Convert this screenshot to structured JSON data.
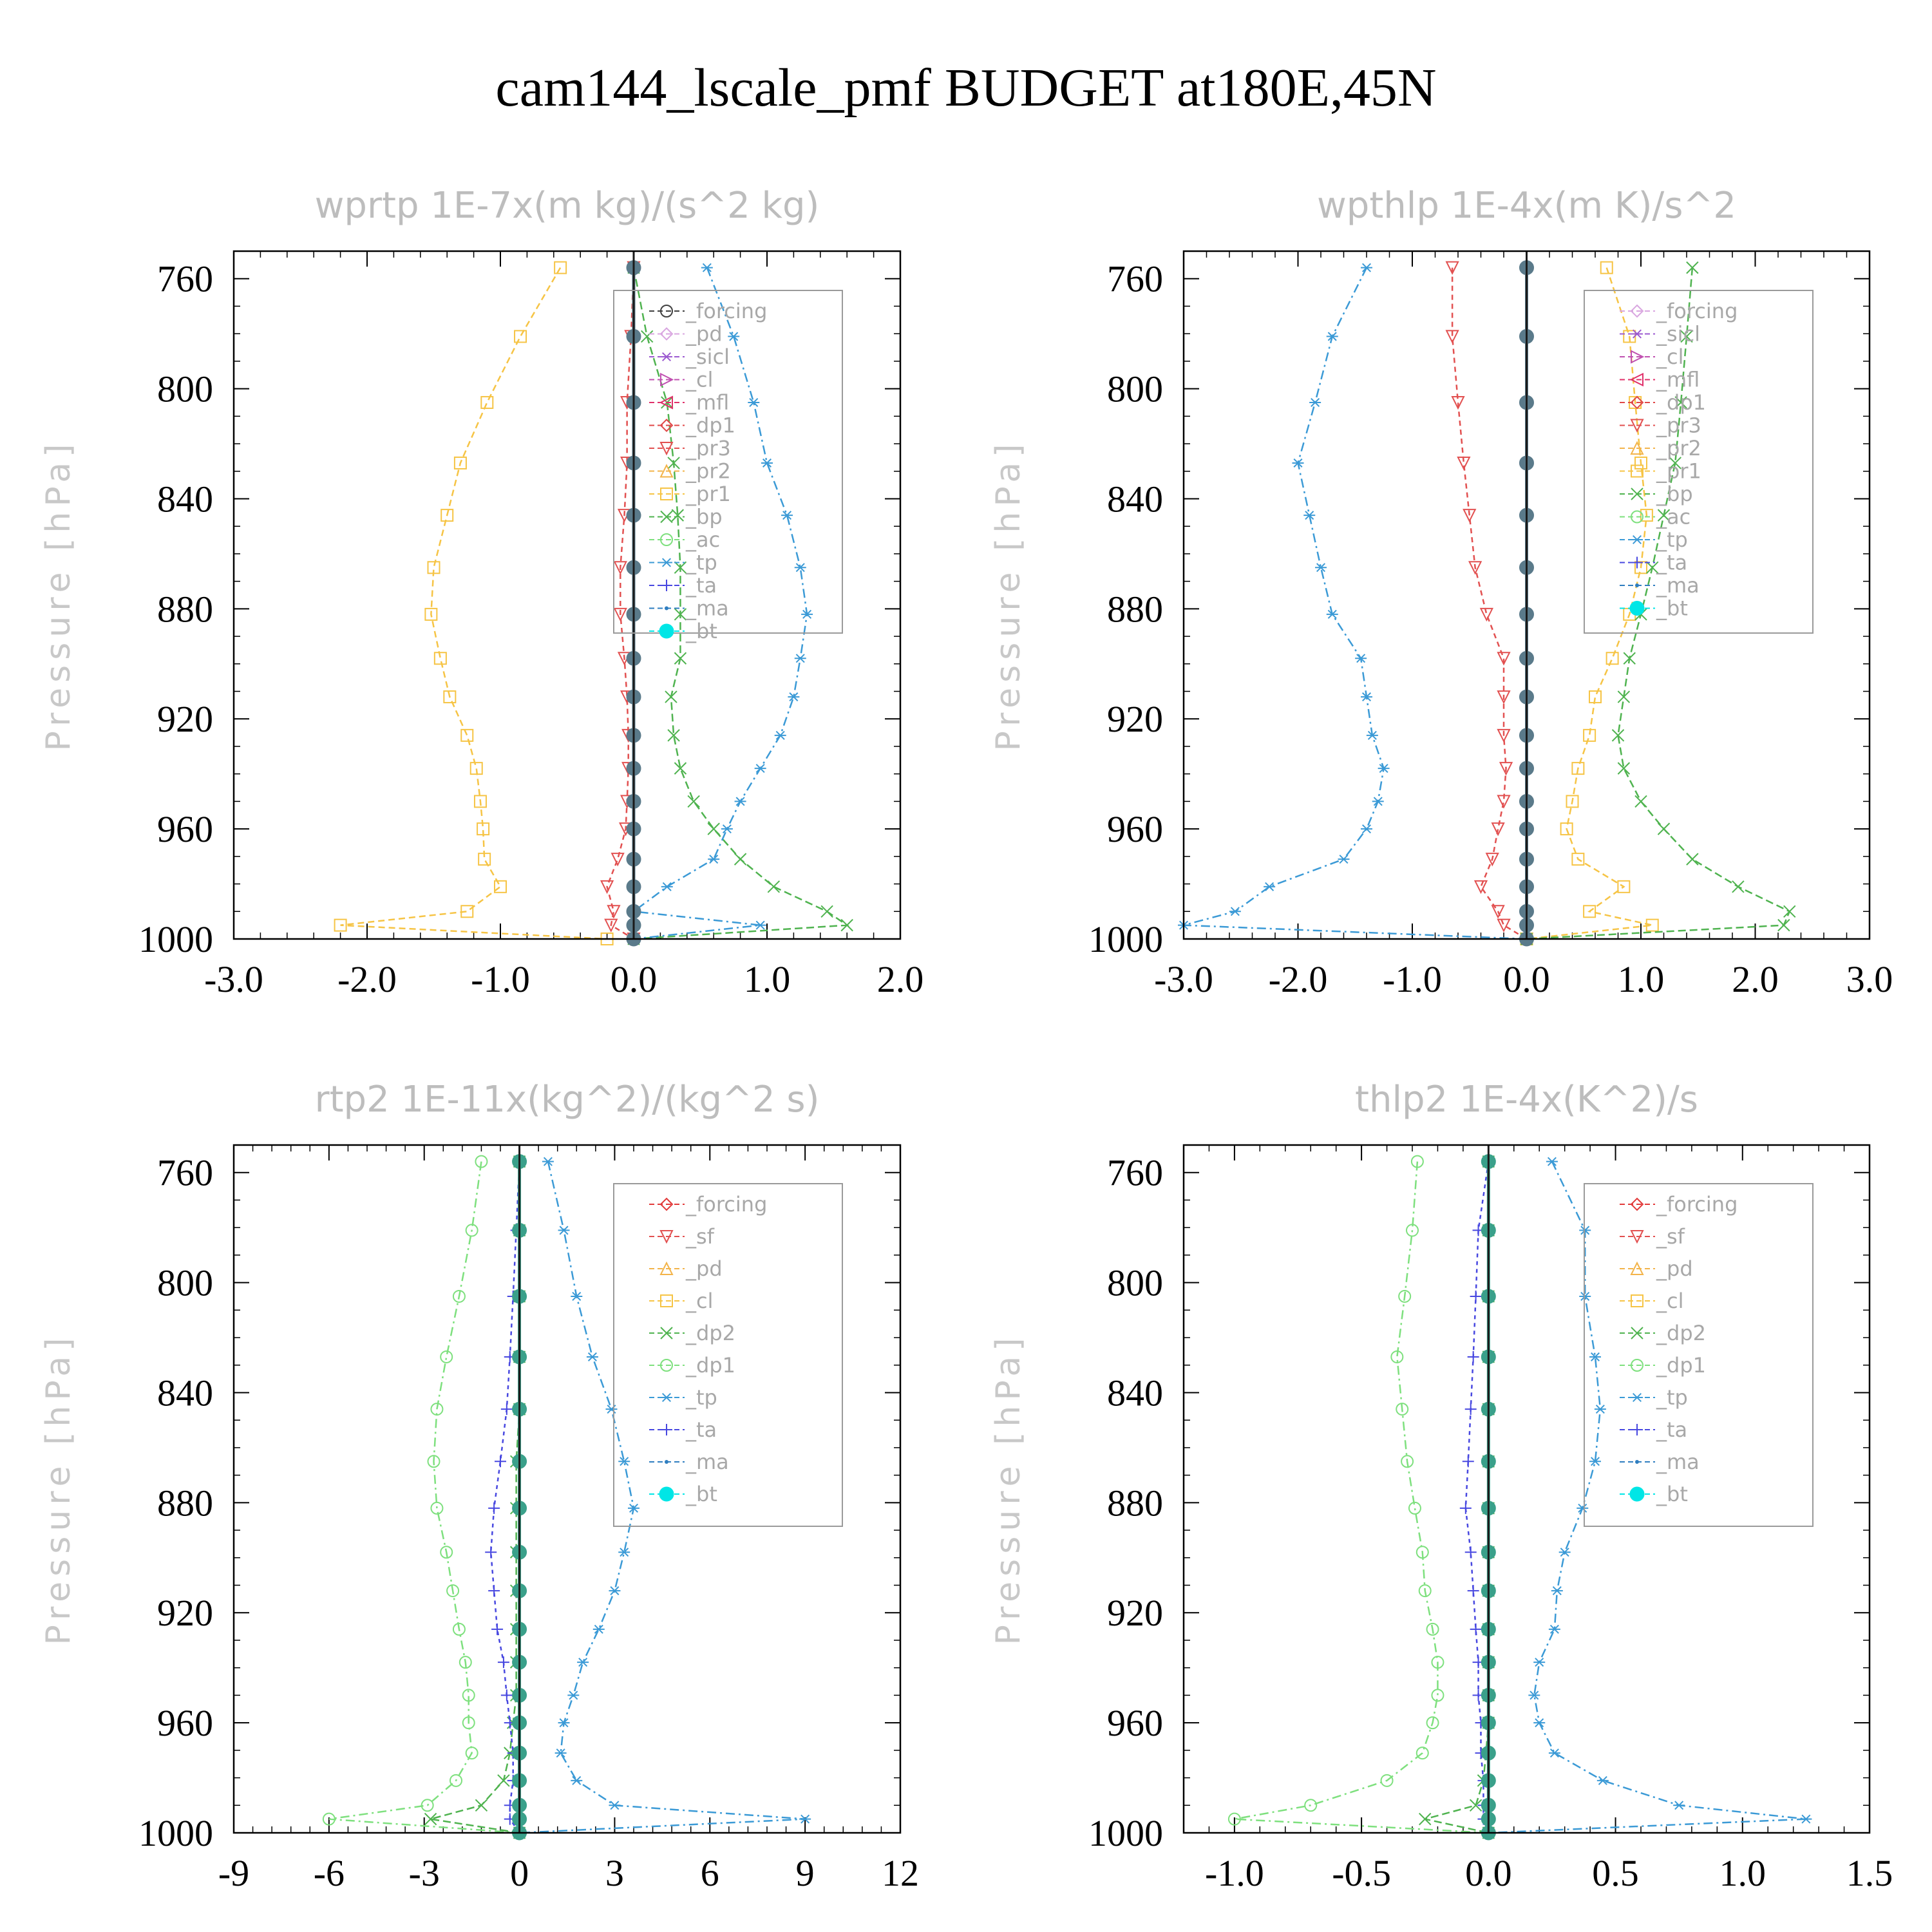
{
  "figure": {
    "title": "cam144_lscale_pmf  BUDGET at180E,45N"
  },
  "colors": {
    "forcing_black": "#404040",
    "forcing_red": "#e23a3a",
    "sf": "#e23a3a",
    "pd": "#d9a6e0",
    "sicl": "#9b59d0",
    "cl": "#c050b0",
    "mfl": "#e0306a",
    "dp1": "#e04848",
    "pr3": "#e25050",
    "pr2": "#f3b44a",
    "pr1": "#f6c445",
    "bp": "#4fb34f",
    "ac": "#7ee07e",
    "tp": "#3b9ad6",
    "ta": "#4848e0",
    "ma": "#2f7ec0",
    "bt": "#00e6e6",
    "axis": "#000000",
    "title": "#bdbdbd"
  },
  "chart_data": [
    {
      "type": "line",
      "title": "wprtp  1E-7x(m kg)/(s^2 kg)",
      "ylabel": "Pressure [hPa]",
      "xlim": [
        -3.0,
        2.0
      ],
      "xticks": [
        "-3.0",
        "-2.0",
        "-1.0",
        "0.0",
        "1.0",
        "2.0"
      ],
      "xtick_values": [
        -3,
        -2,
        -1,
        0,
        1,
        2
      ],
      "ylim": [
        750,
        1000
      ],
      "yticks": [
        "760",
        "800",
        "840",
        "880",
        "920",
        "960",
        "1000"
      ],
      "ytick_values": [
        760,
        800,
        840,
        880,
        920,
        960,
        1000
      ],
      "levels": [
        756,
        781,
        805,
        827,
        846,
        865,
        882,
        898,
        912,
        926,
        938,
        950,
        960,
        971,
        981,
        990,
        995,
        1000
      ],
      "legend": [
        {
          "name": "_forcing",
          "color": "#404040",
          "marker": "circle"
        },
        {
          "name": "_pd",
          "color": "#d9a6e0",
          "marker": "diamond"
        },
        {
          "name": "_sicl",
          "color": "#9b59d0",
          "marker": "star"
        },
        {
          "name": "_cl",
          "color": "#c050b0",
          "marker": "tri-right"
        },
        {
          "name": "_mfl",
          "color": "#e0306a",
          "marker": "tri-left"
        },
        {
          "name": "_dp1",
          "color": "#e04848",
          "marker": "diamond"
        },
        {
          "name": "_pr3",
          "color": "#e25050",
          "marker": "tri-down"
        },
        {
          "name": "_pr2",
          "color": "#f3b44a",
          "marker": "tri-up"
        },
        {
          "name": "_pr1",
          "color": "#f6c445",
          "marker": "square"
        },
        {
          "name": "_bp",
          "color": "#4fb34f",
          "marker": "x"
        },
        {
          "name": "_ac",
          "color": "#7ee07e",
          "marker": "circle"
        },
        {
          "name": "_tp",
          "color": "#3b9ad6",
          "marker": "asterisk"
        },
        {
          "name": "_ta",
          "color": "#4848e0",
          "marker": "plus"
        },
        {
          "name": "_ma",
          "color": "#2f7ec0",
          "marker": "dot"
        },
        {
          "name": "_bt",
          "color": "#00e6e6",
          "marker": "filled-circle"
        }
      ],
      "series": [
        {
          "name": "_pr1",
          "color": "#f6c445",
          "marker": "square",
          "dash": "10,6",
          "values": [
            -0.55,
            -0.85,
            -1.1,
            -1.3,
            -1.4,
            -1.5,
            -1.52,
            -1.45,
            -1.38,
            -1.25,
            -1.18,
            -1.15,
            -1.13,
            -1.12,
            -1.0,
            -1.25,
            -2.2,
            -0.2
          ]
        },
        {
          "name": "_bp",
          "color": "#4fb34f",
          "marker": "x",
          "dash": "12,6",
          "values": [
            0.0,
            0.1,
            0.25,
            0.3,
            0.33,
            0.35,
            0.35,
            0.35,
            0.28,
            0.3,
            0.35,
            0.45,
            0.6,
            0.8,
            1.05,
            1.45,
            1.6,
            0.0
          ]
        },
        {
          "name": "_tp",
          "color": "#3b9ad6",
          "marker": "asterisk",
          "dash": "14,6,3,6",
          "values": [
            0.55,
            0.75,
            0.9,
            1.0,
            1.15,
            1.25,
            1.3,
            1.25,
            1.2,
            1.1,
            0.95,
            0.8,
            0.7,
            0.6,
            0.25,
            0.0,
            0.95,
            0.0
          ]
        },
        {
          "name": "_pr3",
          "color": "#e25050",
          "marker": "tri-down",
          "dash": "8,6",
          "values": [
            0.0,
            -0.02,
            -0.05,
            -0.05,
            -0.07,
            -0.1,
            -0.1,
            -0.07,
            -0.05,
            -0.04,
            -0.04,
            -0.05,
            -0.06,
            -0.12,
            -0.2,
            -0.15,
            -0.17,
            0.0
          ]
        },
        {
          "name": "_bt",
          "color": "#5a7a8a",
          "marker": "filled-circle",
          "dash": "",
          "values": [
            0,
            0,
            0,
            0,
            0,
            0,
            0,
            0,
            0,
            0,
            0,
            0,
            0,
            0,
            0,
            0,
            0,
            0
          ]
        }
      ]
    },
    {
      "type": "line",
      "title": "wpthlp  1E-4x(m K)/s^2",
      "ylabel": "Pressure [hPa]",
      "xlim": [
        -3.0,
        3.0
      ],
      "xticks": [
        "-3.0",
        "-2.0",
        "-1.0",
        "0.0",
        "1.0",
        "2.0",
        "3.0"
      ],
      "xtick_values": [
        -3,
        -2,
        -1,
        0,
        1,
        2,
        3
      ],
      "ylim": [
        750,
        1000
      ],
      "yticks": [
        "760",
        "800",
        "840",
        "880",
        "920",
        "960",
        "1000"
      ],
      "ytick_values": [
        760,
        800,
        840,
        880,
        920,
        960,
        1000
      ],
      "levels": [
        756,
        781,
        805,
        827,
        846,
        865,
        882,
        898,
        912,
        926,
        938,
        950,
        960,
        971,
        981,
        990,
        995,
        1000
      ],
      "legend": [
        {
          "name": "_forcing",
          "color": "#d9a6e0",
          "marker": "diamond"
        },
        {
          "name": "_sicl",
          "color": "#9b59d0",
          "marker": "star"
        },
        {
          "name": "_cl",
          "color": "#c050b0",
          "marker": "tri-right"
        },
        {
          "name": "_mfl",
          "color": "#e0306a",
          "marker": "tri-left"
        },
        {
          "name": "_dp1",
          "color": "#e04848",
          "marker": "diamond"
        },
        {
          "name": "_pr3",
          "color": "#e25050",
          "marker": "tri-down"
        },
        {
          "name": "_pr2",
          "color": "#f3b44a",
          "marker": "tri-up"
        },
        {
          "name": "_pr1",
          "color": "#f6c445",
          "marker": "square"
        },
        {
          "name": "_bp",
          "color": "#4fb34f",
          "marker": "x"
        },
        {
          "name": "_ac",
          "color": "#7ee07e",
          "marker": "circle"
        },
        {
          "name": "_tp",
          "color": "#3b9ad6",
          "marker": "asterisk"
        },
        {
          "name": "_ta",
          "color": "#4848e0",
          "marker": "plus"
        },
        {
          "name": "_ma",
          "color": "#2f7ec0",
          "marker": "dot"
        },
        {
          "name": "_bt",
          "color": "#00e6e6",
          "marker": "filled-circle"
        }
      ],
      "series": [
        {
          "name": "_tp",
          "color": "#3b9ad6",
          "marker": "asterisk",
          "dash": "14,6,3,6",
          "values": [
            -1.4,
            -1.7,
            -1.85,
            -2.0,
            -1.9,
            -1.8,
            -1.7,
            -1.45,
            -1.4,
            -1.35,
            -1.25,
            -1.3,
            -1.4,
            -1.6,
            -2.25,
            -2.55,
            -3.0,
            0.0
          ]
        },
        {
          "name": "_pr3",
          "color": "#e25050",
          "marker": "tri-down",
          "dash": "8,6",
          "values": [
            -0.65,
            -0.65,
            -0.6,
            -0.55,
            -0.5,
            -0.45,
            -0.35,
            -0.2,
            -0.2,
            -0.2,
            -0.18,
            -0.2,
            -0.25,
            -0.3,
            -0.4,
            -0.25,
            -0.2,
            0.0
          ]
        },
        {
          "name": "_pr1",
          "color": "#f6c445",
          "marker": "square",
          "dash": "10,6",
          "values": [
            0.7,
            0.9,
            0.95,
            1.0,
            1.05,
            1.0,
            0.9,
            0.75,
            0.6,
            0.55,
            0.45,
            0.4,
            0.35,
            0.45,
            0.85,
            0.55,
            1.1,
            0.0
          ]
        },
        {
          "name": "_bp",
          "color": "#4fb34f",
          "marker": "x",
          "dash": "12,6",
          "values": [
            1.45,
            1.4,
            1.35,
            1.3,
            1.2,
            1.1,
            1.0,
            0.9,
            0.85,
            0.8,
            0.85,
            1.0,
            1.2,
            1.45,
            1.85,
            2.3,
            2.25,
            0.0
          ]
        },
        {
          "name": "_bt",
          "color": "#5a7a8a",
          "marker": "filled-circle",
          "dash": "",
          "values": [
            0,
            0,
            0,
            0,
            0,
            0,
            0,
            0,
            0,
            0,
            0,
            0,
            0,
            0,
            0,
            0,
            0,
            0
          ]
        }
      ]
    },
    {
      "type": "line",
      "title": "rtp2  1E-11x(kg^2)/(kg^2 s)",
      "ylabel": "Pressure [hPa]",
      "xlim": [
        -9,
        12
      ],
      "xticks": [
        "-9",
        "-6",
        "-3",
        "0",
        "3",
        "6",
        "9",
        "12"
      ],
      "xtick_values": [
        -9,
        -6,
        -3,
        0,
        3,
        6,
        9,
        12
      ],
      "ylim": [
        750,
        1000
      ],
      "yticks": [
        "760",
        "800",
        "840",
        "880",
        "920",
        "960",
        "1000"
      ],
      "ytick_values": [
        760,
        800,
        840,
        880,
        920,
        960,
        1000
      ],
      "levels": [
        756,
        781,
        805,
        827,
        846,
        865,
        882,
        898,
        912,
        926,
        938,
        950,
        960,
        971,
        981,
        990,
        995,
        1000
      ],
      "legend": [
        {
          "name": "_forcing",
          "color": "#e23a3a",
          "marker": "diamond"
        },
        {
          "name": "_sf",
          "color": "#e25050",
          "marker": "tri-down"
        },
        {
          "name": "_pd",
          "color": "#f3b44a",
          "marker": "tri-up"
        },
        {
          "name": "_cl",
          "color": "#f6c445",
          "marker": "square"
        },
        {
          "name": "_dp2",
          "color": "#4fb34f",
          "marker": "x"
        },
        {
          "name": "_dp1",
          "color": "#7ee07e",
          "marker": "circle"
        },
        {
          "name": "_tp",
          "color": "#3b9ad6",
          "marker": "asterisk"
        },
        {
          "name": "_ta",
          "color": "#4848e0",
          "marker": "plus"
        },
        {
          "name": "_ma",
          "color": "#2f7ec0",
          "marker": "dot"
        },
        {
          "name": "_bt",
          "color": "#00e6e6",
          "marker": "filled-circle"
        }
      ],
      "series": [
        {
          "name": "_dp1",
          "color": "#7ee07e",
          "marker": "circle",
          "dash": "14,6,3,6",
          "values": [
            -1.2,
            -1.5,
            -1.9,
            -2.3,
            -2.6,
            -2.7,
            -2.6,
            -2.3,
            -2.1,
            -1.9,
            -1.7,
            -1.6,
            -1.6,
            -1.5,
            -2.0,
            -2.9,
            -6.0,
            0.0
          ]
        },
        {
          "name": "_dp2",
          "color": "#4fb34f",
          "marker": "x",
          "dash": "12,6",
          "values": [
            0.0,
            0.0,
            0.0,
            0.0,
            0.0,
            -0.1,
            -0.1,
            -0.1,
            -0.1,
            -0.1,
            -0.1,
            -0.1,
            -0.2,
            -0.3,
            -0.5,
            -1.2,
            -2.8,
            0.0
          ]
        },
        {
          "name": "_ta",
          "color": "#4848e0",
          "marker": "plus",
          "dash": "6,6",
          "values": [
            0.0,
            -0.1,
            -0.2,
            -0.3,
            -0.4,
            -0.6,
            -0.8,
            -0.9,
            -0.8,
            -0.7,
            -0.5,
            -0.4,
            -0.3,
            -0.2,
            -0.2,
            -0.3,
            -0.3,
            0.0
          ]
        },
        {
          "name": "_tp",
          "color": "#3b9ad6",
          "marker": "asterisk",
          "dash": "14,6,3,6",
          "values": [
            0.9,
            1.4,
            1.8,
            2.3,
            2.9,
            3.3,
            3.6,
            3.3,
            3.0,
            2.5,
            2.0,
            1.7,
            1.4,
            1.3,
            1.8,
            3.0,
            9.0,
            0.0
          ]
        },
        {
          "name": "_bt",
          "color": "#3aa08a",
          "marker": "filled-circle",
          "dash": "",
          "values": [
            0,
            0,
            0,
            0,
            0,
            0,
            0,
            0,
            0,
            0,
            0,
            0,
            0,
            0,
            0,
            0,
            0,
            0
          ]
        }
      ]
    },
    {
      "type": "line",
      "title": "thlp2  1E-4x(K^2)/s",
      "ylabel": "Pressure [hPa]",
      "xlim": [
        -1.2,
        1.5
      ],
      "xticks": [
        "-1.0",
        "-0.5",
        "0.0",
        "0.5",
        "1.0",
        "1.5"
      ],
      "xtick_values": [
        -1.0,
        -0.5,
        0.0,
        0.5,
        1.0,
        1.5
      ],
      "ylim": [
        750,
        1000
      ],
      "yticks": [
        "760",
        "800",
        "840",
        "880",
        "920",
        "960",
        "1000"
      ],
      "ytick_values": [
        760,
        800,
        840,
        880,
        920,
        960,
        1000
      ],
      "levels": [
        756,
        781,
        805,
        827,
        846,
        865,
        882,
        898,
        912,
        926,
        938,
        950,
        960,
        971,
        981,
        990,
        995,
        1000
      ],
      "legend": [
        {
          "name": "_forcing",
          "color": "#e23a3a",
          "marker": "diamond"
        },
        {
          "name": "_sf",
          "color": "#e25050",
          "marker": "tri-down"
        },
        {
          "name": "_pd",
          "color": "#f3b44a",
          "marker": "tri-up"
        },
        {
          "name": "_cl",
          "color": "#f6c445",
          "marker": "square"
        },
        {
          "name": "_dp2",
          "color": "#4fb34f",
          "marker": "x"
        },
        {
          "name": "_dp1",
          "color": "#7ee07e",
          "marker": "circle"
        },
        {
          "name": "_tp",
          "color": "#3b9ad6",
          "marker": "asterisk"
        },
        {
          "name": "_ta",
          "color": "#4848e0",
          "marker": "plus"
        },
        {
          "name": "_ma",
          "color": "#2f7ec0",
          "marker": "dot"
        },
        {
          "name": "_bt",
          "color": "#00e6e6",
          "marker": "filled-circle"
        }
      ],
      "series": [
        {
          "name": "_dp1",
          "color": "#7ee07e",
          "marker": "circle",
          "dash": "14,6,3,6",
          "values": [
            -0.28,
            -0.3,
            -0.33,
            -0.36,
            -0.34,
            -0.32,
            -0.29,
            -0.26,
            -0.25,
            -0.22,
            -0.2,
            -0.2,
            -0.22,
            -0.26,
            -0.4,
            -0.7,
            -1.0,
            0.0
          ]
        },
        {
          "name": "_dp2",
          "color": "#4fb34f",
          "marker": "x",
          "dash": "12,6",
          "values": [
            0.0,
            0.0,
            0.0,
            0.0,
            0.0,
            0.0,
            0.0,
            0.0,
            0.0,
            0.0,
            0.0,
            0.0,
            0.0,
            -0.01,
            -0.02,
            -0.05,
            -0.25,
            0.0
          ]
        },
        {
          "name": "_ta",
          "color": "#4848e0",
          "marker": "plus",
          "dash": "6,6",
          "values": [
            0.0,
            -0.04,
            -0.05,
            -0.06,
            -0.07,
            -0.08,
            -0.09,
            -0.07,
            -0.06,
            -0.05,
            -0.04,
            -0.04,
            -0.03,
            -0.03,
            -0.02,
            -0.02,
            -0.02,
            0.0
          ]
        },
        {
          "name": "_tp",
          "color": "#3b9ad6",
          "marker": "asterisk",
          "dash": "14,6,3,6",
          "values": [
            0.25,
            0.38,
            0.38,
            0.42,
            0.44,
            0.42,
            0.37,
            0.3,
            0.27,
            0.26,
            0.2,
            0.18,
            0.2,
            0.26,
            0.45,
            0.75,
            1.25,
            0.0
          ]
        },
        {
          "name": "_bt",
          "color": "#3aa08a",
          "marker": "filled-circle",
          "dash": "",
          "values": [
            0,
            0,
            0,
            0,
            0,
            0,
            0,
            0,
            0,
            0,
            0,
            0,
            0,
            0,
            0,
            0,
            0,
            0
          ]
        }
      ]
    }
  ]
}
